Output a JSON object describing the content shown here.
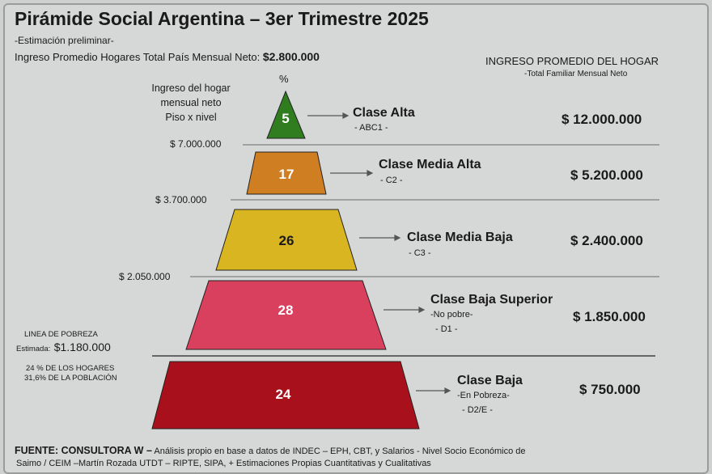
{
  "title": "Pirámide Social Argentina – 3er Trimestre 2025",
  "subtitle": "-Estimación preliminar-",
  "avg_income_label": "Ingreso Promedio Hogares Total País Mensual Neto:",
  "avg_income_value": "$2.800.000",
  "right_header": "INGRESO PROMEDIO DEL HOGAR",
  "right_subheader": "-Total Familiar Mensual Neto",
  "left_header": [
    "Ingreso del hogar",
    "mensual neto",
    "Piso x nivel"
  ],
  "percent_symbol": "%",
  "thresholds": [
    "$ 7.000.000",
    "$ 3.700.000",
    "$ 2.050.000"
  ],
  "levels": [
    {
      "pct": "5",
      "name": "Clase Alta",
      "sub1": "- ABC1 -",
      "sub2": "",
      "income": "$ 12.000.000",
      "color": "#2f7d1f"
    },
    {
      "pct": "17",
      "name": "Clase Media Alta",
      "sub1": "- C2 -",
      "sub2": "",
      "income": "$ 5.200.000",
      "color": "#cf7f22"
    },
    {
      "pct": "26",
      "name": "Clase Media Baja",
      "sub1": "- C3 -",
      "sub2": "",
      "income": "$ 2.400.000",
      "color": "#d9b521"
    },
    {
      "pct": "28",
      "name": "Clase Baja Superior",
      "sub1": "-No pobre-",
      "sub2": "- D1 -",
      "income": "$ 1.850.000",
      "color": "#d8405e"
    },
    {
      "pct": "24",
      "name": "Clase Baja",
      "sub1": "-En Pobreza-",
      "sub2": "- D2/E -",
      "income": "$ 750.000",
      "color": "#a8111b"
    }
  ],
  "poverty": {
    "label": "LINEA DE POBREZA",
    "est_label": "Estimada:",
    "value": "$1.180.000",
    "households": "24 % DE LOS HOGARES",
    "population": "31,6% DE LA POBLACIÓN"
  },
  "source_bold": "FUENTE: CONSULTORA W –",
  "source_text1": "Análisis propio en base a datos de INDEC – EPH, CBT, y Salarios - Nivel Socio Económico de",
  "source_text2": "Saimo / CEIM –Martín Rozada UTDT – RIPTE, SIPA, + Estimaciones Propias Cuantitativas y Cualitativas"
}
